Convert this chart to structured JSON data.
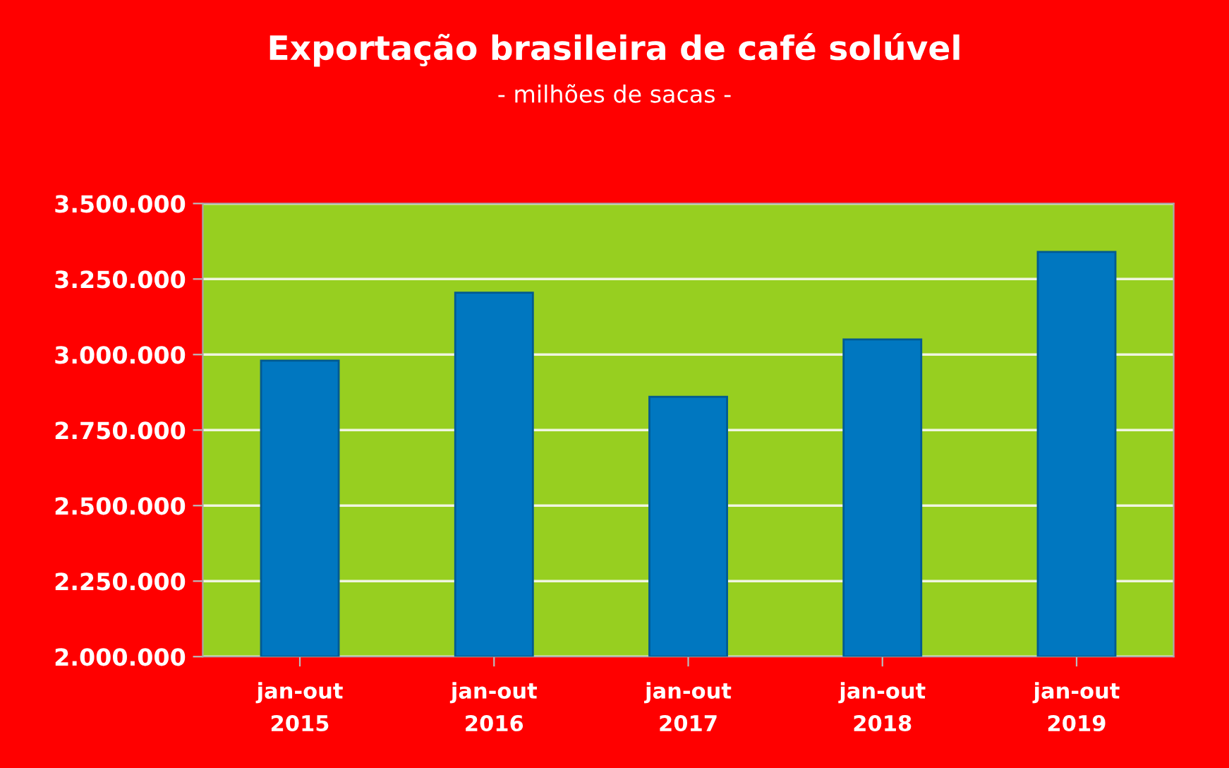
{
  "chart_data": {
    "type": "bar",
    "title": "Exportação brasileira de café solúvel",
    "subtitle": "- milhões de sacas -",
    "categories": [
      "jan-out\n2015",
      "jan-out\n2016",
      "jan-out\n2017",
      "jan-out\n2018",
      "jan-out\n2019"
    ],
    "values": [
      2980000,
      3205000,
      2860000,
      3050000,
      3340000
    ],
    "color": "#0077c0",
    "ylim": [
      2000000,
      3500000
    ],
    "yticks": [
      {
        "value": 2000000,
        "label": "2.000.000"
      },
      {
        "value": 2250000,
        "label": "2.250.000"
      },
      {
        "value": 2500000,
        "label": "2.500.000"
      },
      {
        "value": 2750000,
        "label": "2.750.000"
      },
      {
        "value": 3000000,
        "label": "3.000.000"
      },
      {
        "value": 3250000,
        "label": "3.250.000"
      },
      {
        "value": 3500000,
        "label": "3.500.000"
      }
    ],
    "grid": "y"
  }
}
